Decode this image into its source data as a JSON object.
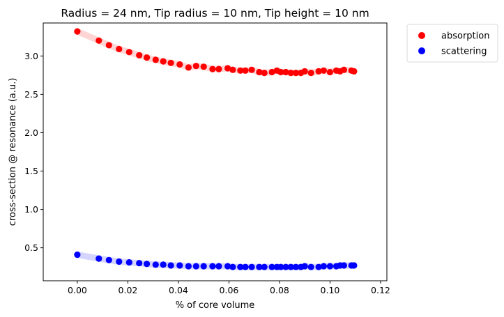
{
  "chart_data": {
    "type": "scatter",
    "title": "Radius = 24 nm, Tip radius = 10 nm, Tip height = 10 nm",
    "xlabel": "% of core volume",
    "ylabel": "cross-section @ resonance (a.u.)",
    "xlim": [
      -0.0135,
      0.1225
    ],
    "ylim": [
      0.07,
      3.43
    ],
    "xticks": [
      0.0,
      0.02,
      0.04,
      0.06,
      0.08,
      0.1,
      0.12
    ],
    "xtick_labels": [
      "0.00",
      "0.02",
      "0.04",
      "0.06",
      "0.08",
      "0.10",
      "0.12"
    ],
    "yticks": [
      0.5,
      1.0,
      1.5,
      2.0,
      2.5,
      3.0
    ],
    "ytick_labels": [
      "0.5",
      "1.0",
      "1.5",
      "2.0",
      "2.5",
      "3.0"
    ],
    "grid": false,
    "legend_position": "outside-top-right",
    "series": [
      {
        "name": "absorption",
        "color": "#ff0000",
        "band_color": "#ffcccc",
        "x": [
          0.0,
          0.0085,
          0.0125,
          0.0165,
          0.0205,
          0.0245,
          0.0275,
          0.031,
          0.034,
          0.037,
          0.0405,
          0.044,
          0.047,
          0.05,
          0.0535,
          0.056,
          0.0595,
          0.0615,
          0.0645,
          0.0665,
          0.069,
          0.072,
          0.074,
          0.077,
          0.079,
          0.0805,
          0.0825,
          0.0845,
          0.0865,
          0.0885,
          0.09,
          0.0925,
          0.0955,
          0.0975,
          0.1,
          0.1025,
          0.104,
          0.1055,
          0.1085,
          0.1095
        ],
        "y": [
          3.32,
          3.2,
          3.14,
          3.09,
          3.05,
          3.01,
          2.98,
          2.95,
          2.93,
          2.91,
          2.89,
          2.85,
          2.87,
          2.86,
          2.83,
          2.83,
          2.84,
          2.82,
          2.81,
          2.81,
          2.82,
          2.79,
          2.78,
          2.79,
          2.81,
          2.79,
          2.79,
          2.78,
          2.78,
          2.78,
          2.8,
          2.78,
          2.8,
          2.81,
          2.79,
          2.81,
          2.8,
          2.82,
          2.81,
          2.8
        ]
      },
      {
        "name": "scattering",
        "color": "#0000ff",
        "band_color": "#ccccff",
        "x": [
          0.0,
          0.0085,
          0.0125,
          0.0165,
          0.0205,
          0.0245,
          0.0275,
          0.031,
          0.034,
          0.037,
          0.0405,
          0.044,
          0.047,
          0.05,
          0.0535,
          0.056,
          0.0595,
          0.0615,
          0.0645,
          0.0665,
          0.069,
          0.072,
          0.074,
          0.077,
          0.079,
          0.0805,
          0.0825,
          0.0845,
          0.0865,
          0.0885,
          0.09,
          0.0925,
          0.0955,
          0.0975,
          0.1,
          0.1025,
          0.104,
          0.1055,
          0.1085,
          0.1095
        ],
        "y": [
          0.41,
          0.36,
          0.34,
          0.32,
          0.31,
          0.3,
          0.29,
          0.28,
          0.28,
          0.27,
          0.27,
          0.26,
          0.26,
          0.26,
          0.26,
          0.26,
          0.26,
          0.25,
          0.25,
          0.25,
          0.25,
          0.25,
          0.25,
          0.25,
          0.25,
          0.25,
          0.25,
          0.25,
          0.25,
          0.25,
          0.26,
          0.25,
          0.25,
          0.26,
          0.26,
          0.26,
          0.27,
          0.27,
          0.27,
          0.27
        ]
      }
    ]
  }
}
